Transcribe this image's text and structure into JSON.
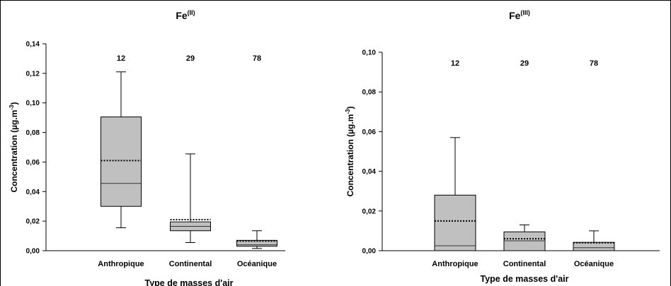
{
  "chart_data": [
    {
      "type": "box",
      "title": "Fe",
      "title_superscript": "(II)",
      "xlabel": "Type de masses d'air",
      "ylabel": "Concentration (µg.m",
      "ylabel_superscript": "-3",
      "ylabel_suffix": ")",
      "ylim": [
        0,
        0.14
      ],
      "yticks": [
        "0,00",
        "0,02",
        "0,04",
        "0,06",
        "0,08",
        "0,10",
        "0,12",
        "0,14"
      ],
      "categories": [
        "Anthropique",
        "Continental",
        "Océanique"
      ],
      "counts": [
        "12",
        "29",
        "78"
      ],
      "boxes": [
        {
          "whisker_low": 0.0155,
          "q1": 0.03,
          "median": 0.0455,
          "mean": 0.061,
          "q3": 0.0905,
          "whisker_high": 0.121
        },
        {
          "whisker_low": 0.0055,
          "q1": 0.0135,
          "median": 0.0165,
          "mean": 0.021,
          "q3": 0.0195,
          "whisker_high": 0.0655
        },
        {
          "whisker_low": 0.0015,
          "q1": 0.003,
          "median": 0.004,
          "mean": 0.0065,
          "q3": 0.007,
          "whisker_high": 0.0135
        }
      ],
      "box_color": "#c0c0c0",
      "grid": false
    },
    {
      "type": "box",
      "title": "Fe",
      "title_superscript": "(III)",
      "xlabel": "Type de masses d'air",
      "ylabel": "Concentration (µg.m",
      "ylabel_superscript": "-3",
      "ylabel_suffix": ")",
      "ylim": [
        0,
        0.1
      ],
      "yticks": [
        "0,00",
        "0,02",
        "0,04",
        "0,06",
        "0,08",
        "0,10"
      ],
      "categories": [
        "Anthropique",
        "Continental",
        "Océanique"
      ],
      "counts": [
        "12",
        "29",
        "78"
      ],
      "boxes": [
        {
          "whisker_low": 0.0,
          "q1": 0.0,
          "median": 0.0025,
          "mean": 0.015,
          "q3": 0.028,
          "whisker_high": 0.057
        },
        {
          "whisker_low": 0.0,
          "q1": 0.0,
          "median": 0.005,
          "mean": 0.006,
          "q3": 0.0095,
          "whisker_high": 0.013
        },
        {
          "whisker_low": 0.0,
          "q1": 0.0,
          "median": 0.0015,
          "mean": 0.004,
          "q3": 0.0042,
          "whisker_high": 0.01
        }
      ],
      "box_color": "#c0c0c0",
      "grid": false
    }
  ]
}
